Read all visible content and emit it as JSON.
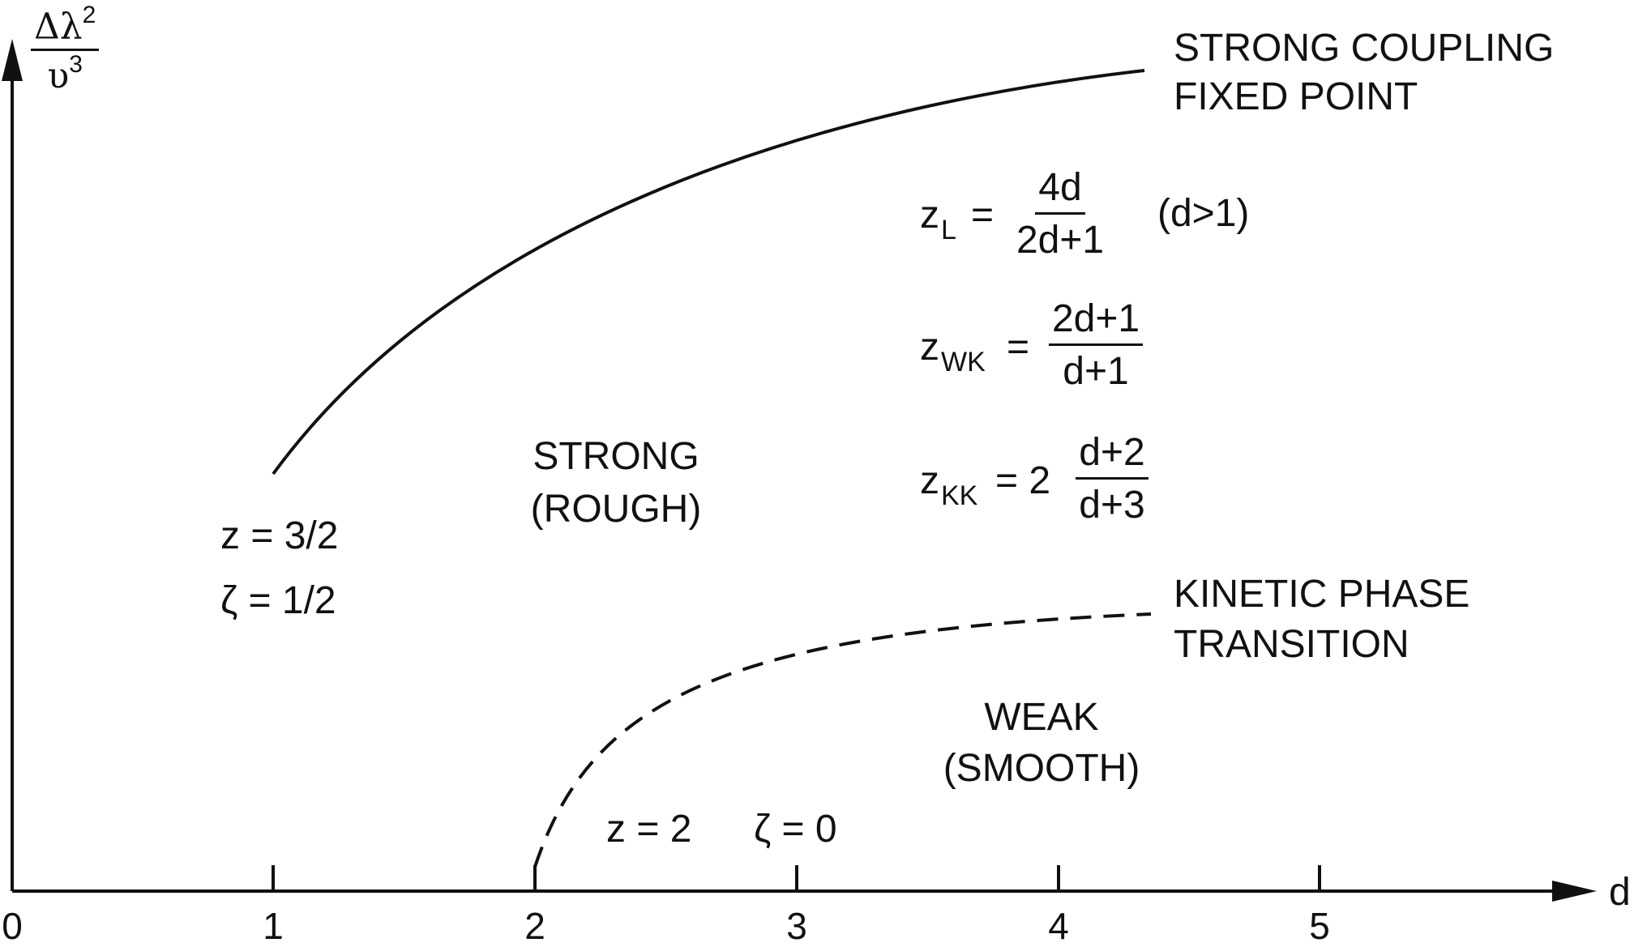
{
  "axes": {
    "y_label_num": "Δλ",
    "y_label_num_sup": "2",
    "y_label_den": "υ",
    "y_label_den_sup": "3",
    "x_label": "d",
    "x_ticks": [
      "0",
      "1",
      "2",
      "3",
      "4",
      "5"
    ]
  },
  "upper_curve": {
    "label_line1": "STRONG COUPLING",
    "label_line2": "FIXED POINT",
    "start_note_line1": "z = 3/2",
    "start_note_line2": "ζ = 1/2"
  },
  "lower_curve": {
    "label_line1": "KINETIC PHASE",
    "label_line2": "TRANSITION",
    "note_z": "z = 2",
    "note_zeta": "ζ = 0"
  },
  "regions": {
    "strong_line1": "STRONG",
    "strong_line2": "(ROUGH)",
    "weak_line1": "WEAK",
    "weak_line2": "(SMOOTH)"
  },
  "formulas": {
    "zl_lhs": "z",
    "zl_sub": "L",
    "zl_eq": "=",
    "zl_num": "4d",
    "zl_den": "2d+1",
    "zl_cond": "(d>1)",
    "zwk_lhs": "z",
    "zwk_sub": "WK",
    "zwk_eq": "=",
    "zwk_num": "2d+1",
    "zwk_den": "d+1",
    "zkk_lhs": "z",
    "zkk_sub": "KK",
    "zkk_eq": "= 2",
    "zkk_num": "d+2",
    "zkk_den": "d+3"
  }
}
